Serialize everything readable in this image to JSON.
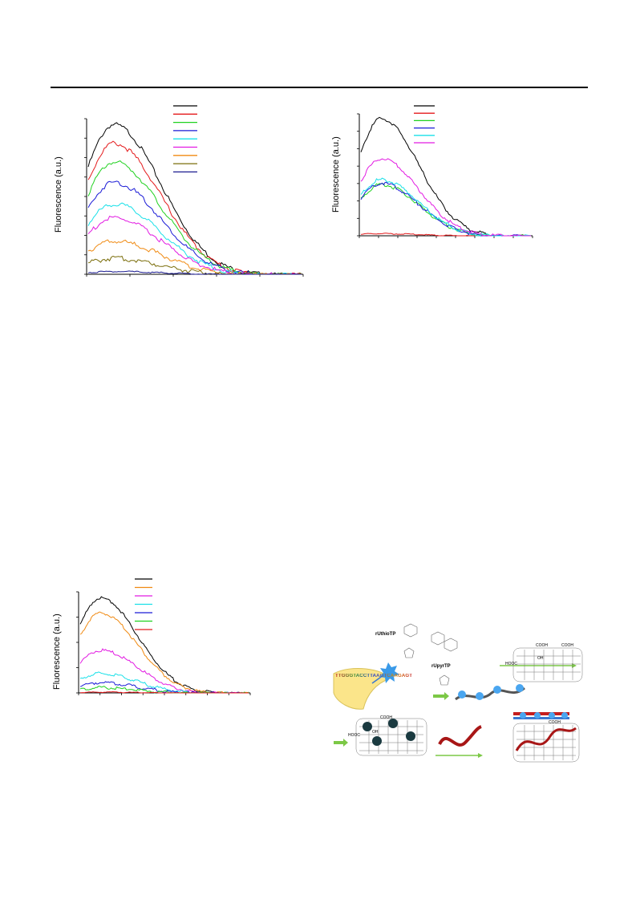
{
  "colors": {
    "black": "#000000",
    "red": "#e41a1c",
    "green": "#1fd11f",
    "blue": "#1a1ad6",
    "cyan": "#19e0e8",
    "magenta": "#e21ae2",
    "orange": "#f08a12",
    "olive": "#7a6d0a",
    "navy": "#1a1a90"
  },
  "chart_data": [
    {
      "type": "line",
      "ylabel": "Fluorescence (a.u.)",
      "xlim": [
        0,
        100
      ],
      "ylim": [
        0,
        100
      ],
      "grid": false,
      "legend": "top-center",
      "series": [
        {
          "color": "#000000",
          "peak": 97
        },
        {
          "color": "#e41a1c",
          "peak": 85
        },
        {
          "color": "#1fd11f",
          "peak": 73
        },
        {
          "color": "#1a1ad6",
          "peak": 60
        },
        {
          "color": "#19e0e8",
          "peak": 46
        },
        {
          "color": "#e21ae2",
          "peak": 37
        },
        {
          "color": "#f08a12",
          "peak": 22
        },
        {
          "color": "#7a6d0a",
          "peak": 11
        },
        {
          "color": "#1a1a90",
          "peak": 2
        }
      ]
    },
    {
      "type": "line",
      "ylabel": "Fluorescence (a.u.)",
      "xlim": [
        0,
        100
      ],
      "ylim": [
        0,
        100
      ],
      "grid": false,
      "legend": "top-center",
      "series": [
        {
          "color": "#000000",
          "peak": 97
        },
        {
          "color": "#e41a1c",
          "peak": 2
        },
        {
          "color": "#1fd11f",
          "peak": 43
        },
        {
          "color": "#1a1ad6",
          "peak": 44
        },
        {
          "color": "#19e0e8",
          "peak": 47
        },
        {
          "color": "#e21ae2",
          "peak": 64
        }
      ]
    },
    {
      "type": "line",
      "ylabel": "Fluorescence (a.u.)",
      "xlim": [
        0,
        100
      ],
      "ylim": [
        0,
        100
      ],
      "grid": false,
      "legend": "top-center",
      "series": [
        {
          "color": "#000000",
          "peak": 95
        },
        {
          "color": "#f08a12",
          "peak": 80
        },
        {
          "color": "#e21ae2",
          "peak": 43
        },
        {
          "color": "#19e0e8",
          "peak": 20
        },
        {
          "color": "#1a1ad6",
          "peak": 11
        },
        {
          "color": "#1fd11f",
          "peak": 6
        },
        {
          "color": "#e41a1c",
          "peak": 1
        }
      ]
    }
  ],
  "scheme": {
    "rUthioTP": "rUthioTP",
    "rUpyrTP": "rUpyrTP",
    "sequence": "TTGGGTACCTTAAGTCAAGAGT",
    "cooh": "COOH",
    "hooc": "HOOC",
    "oh": "OH"
  }
}
